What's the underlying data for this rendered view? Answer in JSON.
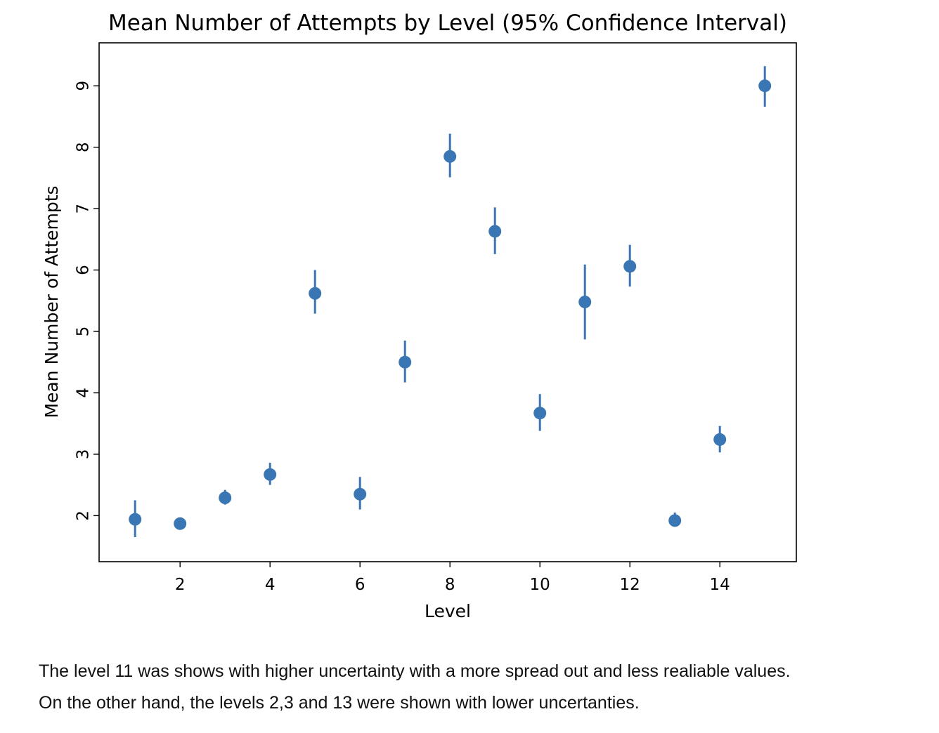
{
  "chart_data": {
    "type": "scatter",
    "title": "Mean Number of Attempts by Level (95% Confidence Interval)",
    "xlabel": "Level",
    "ylabel": "Mean Number of Attempts",
    "xlim": [
      0.2,
      15.7
    ],
    "ylim": [
      1.25,
      9.7
    ],
    "xticks": [
      2,
      4,
      6,
      8,
      10,
      12,
      14
    ],
    "yticks": [
      2,
      3,
      4,
      5,
      6,
      7,
      8,
      9
    ],
    "grid": false,
    "legend": "none",
    "marker_color": "#3a76b4",
    "series": [
      {
        "points": [
          {
            "x": 1,
            "y": 1.94,
            "ci_low": 1.65,
            "ci_high": 2.25
          },
          {
            "x": 2,
            "y": 1.87,
            "ci_low": 1.8,
            "ci_high": 1.95
          },
          {
            "x": 3,
            "y": 2.29,
            "ci_low": 2.18,
            "ci_high": 2.42
          },
          {
            "x": 4,
            "y": 2.67,
            "ci_low": 2.5,
            "ci_high": 2.86
          },
          {
            "x": 5,
            "y": 5.62,
            "ci_low": 5.29,
            "ci_high": 6.0
          },
          {
            "x": 6,
            "y": 2.35,
            "ci_low": 2.1,
            "ci_high": 2.63
          },
          {
            "x": 7,
            "y": 4.5,
            "ci_low": 4.17,
            "ci_high": 4.85
          },
          {
            "x": 8,
            "y": 7.85,
            "ci_low": 7.51,
            "ci_high": 8.22
          },
          {
            "x": 9,
            "y": 6.63,
            "ci_low": 6.26,
            "ci_high": 7.02
          },
          {
            "x": 10,
            "y": 3.67,
            "ci_low": 3.38,
            "ci_high": 3.98
          },
          {
            "x": 11,
            "y": 5.48,
            "ci_low": 4.87,
            "ci_high": 6.09
          },
          {
            "x": 12,
            "y": 6.06,
            "ci_low": 5.73,
            "ci_high": 6.41
          },
          {
            "x": 13,
            "y": 1.92,
            "ci_low": 1.82,
            "ci_high": 2.05
          },
          {
            "x": 14,
            "y": 3.24,
            "ci_low": 3.03,
            "ci_high": 3.46
          },
          {
            "x": 15,
            "y": 9.0,
            "ci_low": 8.66,
            "ci_high": 9.32
          }
        ]
      }
    ]
  },
  "caption": {
    "line1": "The level 11 was shows with higher uncertainty with a more spread out and less realiable values.",
    "line2": "On the other hand, the levels 2,3 and 13 were shown with lower uncertanties."
  }
}
